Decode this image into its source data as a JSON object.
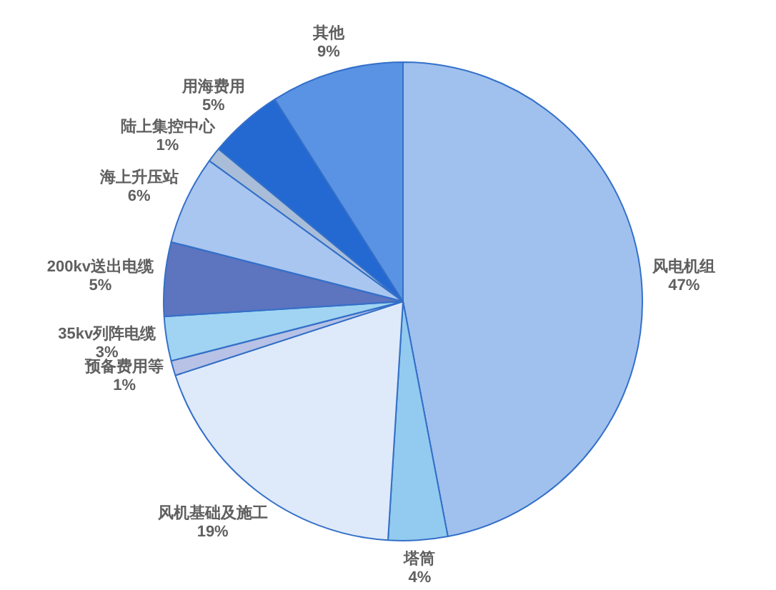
{
  "chart_data": {
    "type": "pie",
    "categories": [
      "风电机组",
      "塔筒",
      "风机基础及施工",
      "预备费用等",
      "35kv列阵电缆",
      "200kv送出电缆",
      "海上升压站",
      "陆上集控中心",
      "用海费用",
      "其他"
    ],
    "values": [
      47,
      4,
      19,
      1,
      3,
      5,
      6,
      1,
      5,
      9
    ],
    "value_labels": [
      "47%",
      "4%",
      "19%",
      "1%",
      "3%",
      "5%",
      "6%",
      "1%",
      "5%",
      "9%"
    ],
    "colors": [
      "#a0c0ee",
      "#92cbef",
      "#dee9fa",
      "#b7c2e6",
      "#a0d4f2",
      "#5d74bf",
      "#a9c6f0",
      "#a9bdd9",
      "#2468d2",
      "#5b93e4"
    ],
    "legend": false
  }
}
